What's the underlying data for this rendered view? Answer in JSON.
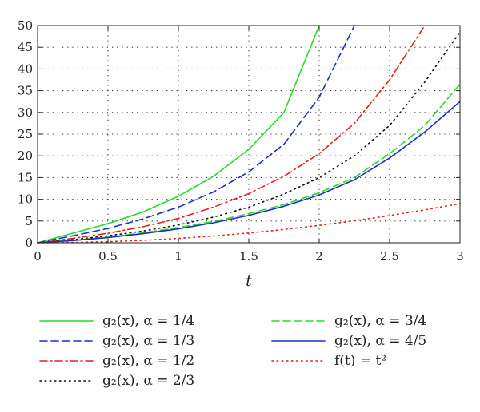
{
  "chart_data": {
    "type": "line",
    "title": "",
    "xlabel": "t",
    "ylabel": "",
    "xlim": [
      0,
      3
    ],
    "ylim": [
      0,
      50
    ],
    "grid": true,
    "legend_position": "below",
    "x_ticks": [
      0,
      0.5,
      1,
      1.5,
      2,
      2.5,
      3
    ],
    "y_ticks": [
      0,
      5,
      10,
      15,
      20,
      25,
      30,
      35,
      40,
      45,
      50
    ],
    "x": [
      0,
      0.25,
      0.5,
      0.75,
      1,
      1.25,
      1.5,
      1.75,
      2,
      2.25,
      2.5,
      2.75,
      3
    ],
    "series": [
      {
        "name": "g₂(x),  α = 1/4",
        "color": "#22dd22",
        "style": "solid",
        "values": [
          0,
          2.2,
          4.4,
          7.1,
          10.7,
          15.3,
          21.5,
          30.0,
          50.0,
          null,
          null,
          null,
          null
        ]
      },
      {
        "name": "g₂(x),  α = 1/3",
        "color": "#1b2fc7",
        "style": "dashed",
        "values": [
          0,
          1.6,
          3.3,
          5.5,
          8.2,
          11.7,
          16.3,
          22.7,
          33.5,
          50.0,
          null,
          null,
          null
        ]
      },
      {
        "name": "g₂(x), α = 1/2",
        "color": "#e2231a",
        "style": "dashdot",
        "values": [
          0,
          1.0,
          2.2,
          3.7,
          5.6,
          8.2,
          11.3,
          15.3,
          20.5,
          27.5,
          37.5,
          50.0,
          null
        ]
      },
      {
        "name": "g₂(x), α = 2/3",
        "color": "#111111",
        "style": "dotted",
        "values": [
          0,
          0.7,
          1.6,
          2.7,
          4.1,
          5.9,
          8.2,
          11.2,
          15.0,
          20.0,
          27.0,
          37.0,
          48.5
        ]
      },
      {
        "name": "g₂(x), α = 3/4",
        "color": "#22dd22",
        "style": "dashed",
        "values": [
          0,
          0.55,
          1.3,
          2.3,
          3.5,
          4.9,
          6.7,
          8.8,
          11.5,
          15.0,
          20.5,
          27.0,
          36.5
        ]
      },
      {
        "name": "g₂(x), α = 4/5",
        "color": "#1b2fc7",
        "style": "solid",
        "values": [
          0,
          0.5,
          1.2,
          2.1,
          3.2,
          4.6,
          6.3,
          8.4,
          11.0,
          14.5,
          19.5,
          25.5,
          32.5
        ]
      },
      {
        "name": "f(t) = t²",
        "color": "#e2231a",
        "style": "dotted",
        "values": [
          0,
          0.0625,
          0.25,
          0.5625,
          1,
          1.5625,
          2.25,
          3.0625,
          4,
          5.0625,
          6.25,
          7.5625,
          9
        ]
      }
    ]
  }
}
